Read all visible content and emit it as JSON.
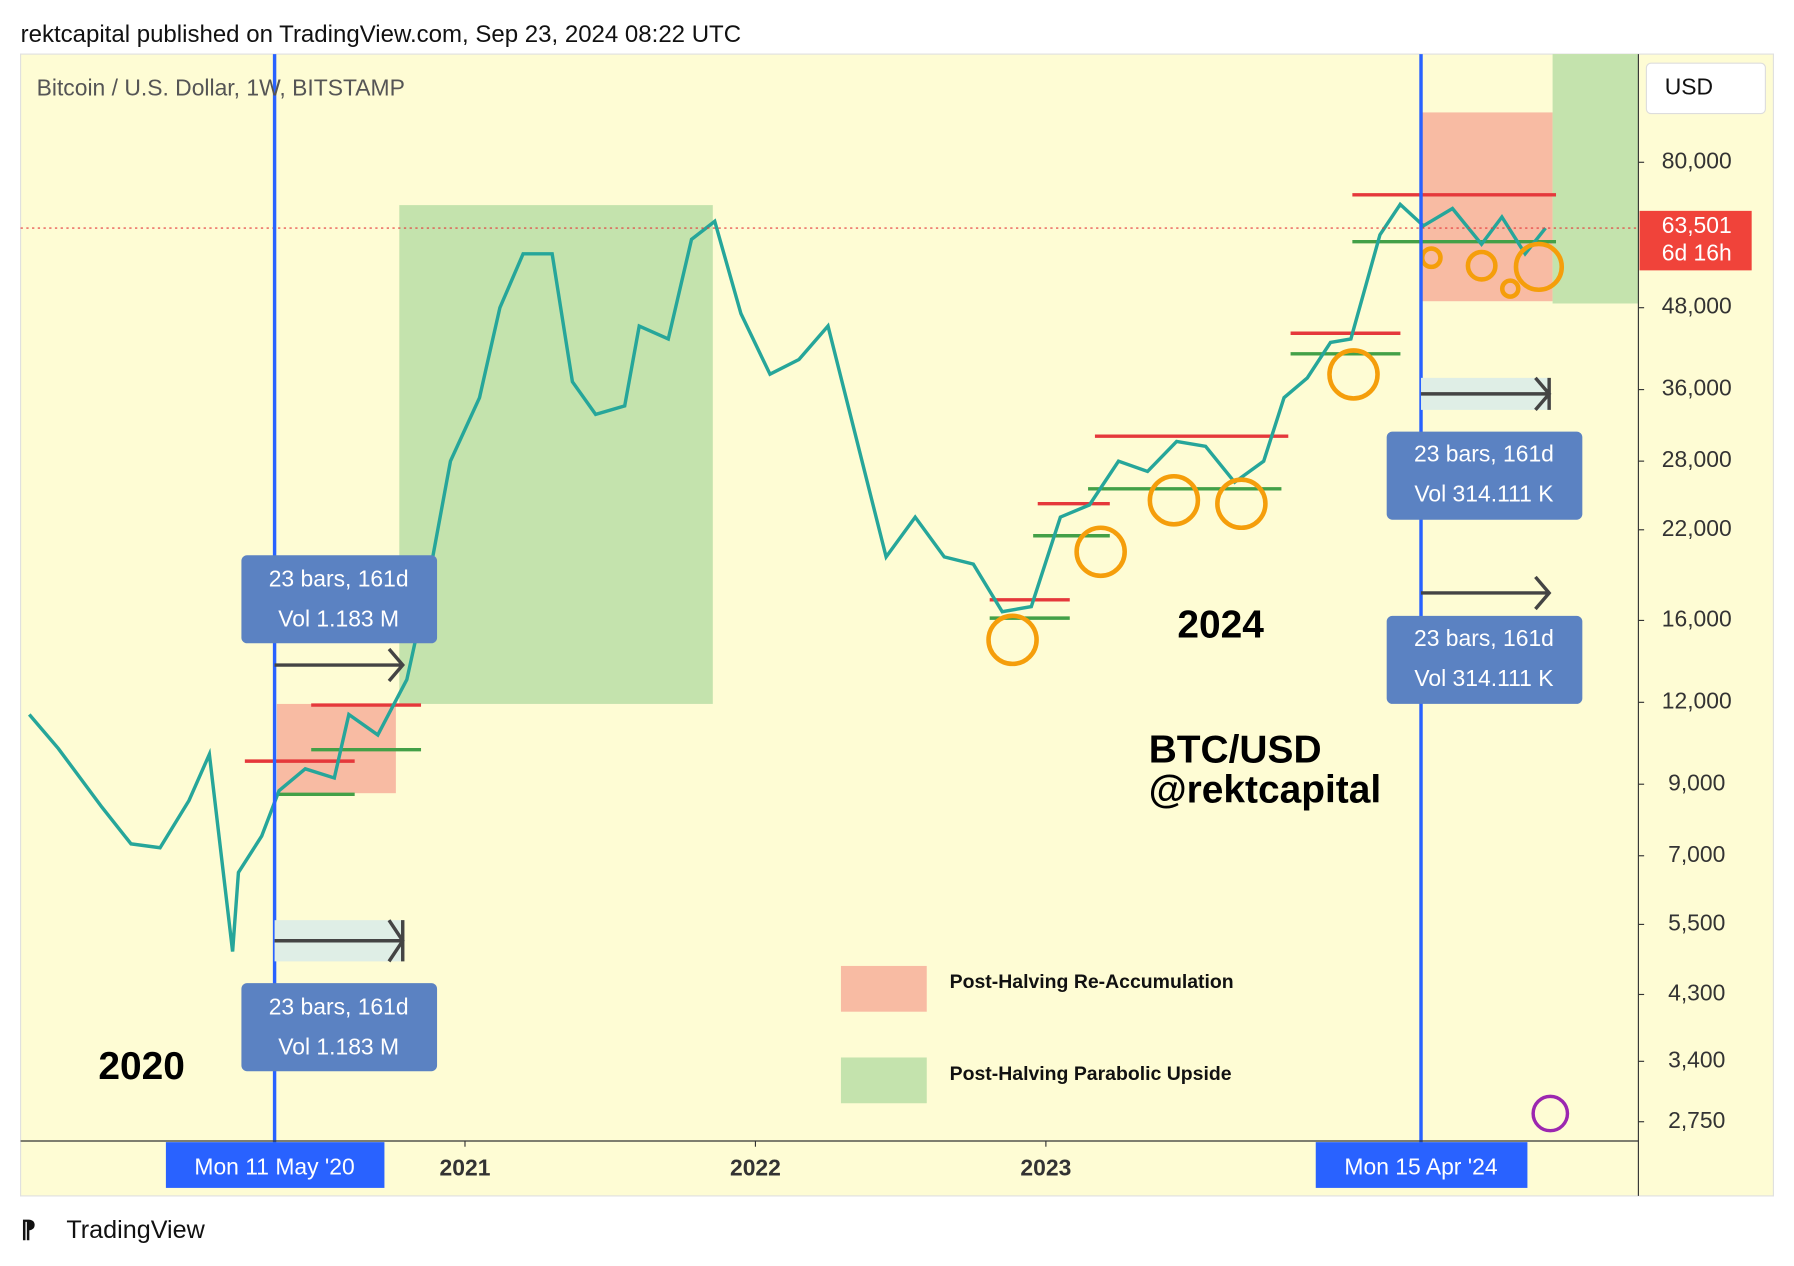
{
  "header": "rektcapital published on TradingView.com, Sep 23, 2024 08:22 UTC",
  "footer": "TradingView",
  "chart_data": {
    "type": "line",
    "title": "Bitcoin / U.S. Dollar, 1W, BITSTAMP",
    "y_unit": "USD",
    "log_scale": true,
    "color": "#26a69a",
    "x": [
      2019.5,
      2019.6,
      2019.75,
      2019.85,
      2019.95,
      2020.05,
      2020.12,
      2020.2,
      2020.22,
      2020.3,
      2020.36,
      2020.45,
      2020.55,
      2020.6,
      2020.7,
      2020.8,
      2020.87,
      2020.95,
      2021.05,
      2021.12,
      2021.2,
      2021.3,
      2021.37,
      2021.45,
      2021.55,
      2021.6,
      2021.7,
      2021.78,
      2021.86,
      2021.95,
      2022.05,
      2022.15,
      2022.25,
      2022.35,
      2022.45,
      2022.55,
      2022.65,
      2022.75,
      2022.85,
      2022.95,
      2023.05,
      2023.15,
      2023.25,
      2023.35,
      2023.45,
      2023.55,
      2023.65,
      2023.75,
      2023.82,
      2023.9,
      2023.98,
      2024.05,
      2024.15,
      2024.22,
      2024.3,
      2024.4,
      2024.5,
      2024.57,
      2024.65,
      2024.72
    ],
    "values": [
      11500,
      10200,
      8300,
      7300,
      7200,
      8500,
      10000,
      5000,
      6600,
      7500,
      8800,
      9500,
      9200,
      11500,
      10700,
      13000,
      18000,
      28000,
      35000,
      48000,
      58000,
      58000,
      37000,
      33000,
      34000,
      45000,
      43000,
      61000,
      65000,
      47000,
      38000,
      40000,
      45000,
      30000,
      20000,
      23000,
      20000,
      19500,
      16500,
      16800,
      23000,
      24000,
      28000,
      27000,
      30000,
      29500,
      26000,
      28000,
      35000,
      37500,
      42500,
      43000,
      62000,
      69000,
      64000,
      68000,
      60000,
      66000,
      58000,
      63500
    ],
    "xlim": [
      2019.47,
      2025.04
    ],
    "xticks": [
      2021,
      2022,
      2023
    ],
    "ylim": [
      2570,
      117000
    ],
    "yticks": [
      {
        "value": 2750,
        "label": "2,750"
      },
      {
        "value": 3400,
        "label": "3,400"
      },
      {
        "value": 4300,
        "label": "4,300"
      },
      {
        "value": 5500,
        "label": "5,500"
      },
      {
        "value": 7000,
        "label": "7,000"
      },
      {
        "value": 9000,
        "label": "9,000"
      },
      {
        "value": 12000,
        "label": "12,000"
      },
      {
        "value": 16000,
        "label": "16,000"
      },
      {
        "value": 22000,
        "label": "22,000"
      },
      {
        "value": 28000,
        "label": "28,000"
      },
      {
        "value": 36000,
        "label": "36,000"
      },
      {
        "value": 48000,
        "label": "48,000"
      },
      {
        "value": 80000,
        "label": "80,000"
      }
    ],
    "last_price": {
      "value": 63501,
      "label": "63,501"
    },
    "countdown": "6d 16h",
    "date_labels": [
      "Mon 11 May '20",
      "Mon 15 Apr '24"
    ],
    "measures": [
      [
        "23 bars, 161d",
        "Vol 1.183 M"
      ],
      [
        "23 bars, 161d",
        "Vol 1.183 M"
      ],
      [
        "23 bars, 161d",
        "Vol 314.111 K"
      ],
      [
        "23 bars, 161d",
        "Vol 314.111 K"
      ]
    ],
    "annotations": [
      "2020",
      "2024",
      "BTC/USD",
      "@rektcapital"
    ],
    "legend": [
      {
        "label": "Post-Halving Re-Accumulation",
        "color": "#f8bba3"
      },
      {
        "label": "Post-Halving Parabolic Upside",
        "color": "#c4e3ad"
      }
    ]
  }
}
